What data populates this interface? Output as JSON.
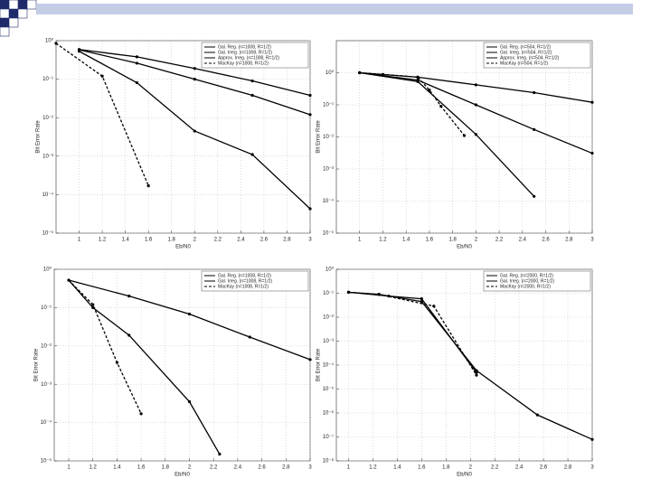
{
  "chart_data": [
    {
      "type": "line",
      "x_label": "Eb/N0",
      "y_label": "Bit Error Rate",
      "ylog": true,
      "grid": true,
      "legend": "upper right",
      "xlim": [
        0.8,
        3
      ],
      "xticks": [
        1,
        1.2,
        1.4,
        1.6,
        1.8,
        2,
        2.2,
        2.4,
        2.6,
        2.8,
        3
      ],
      "ylim": [
        1e-05,
        1
      ],
      "yticks": [
        {
          "value": 1,
          "label": "10⁰"
        },
        {
          "value": 0.1,
          "label": "10⁻¹"
        },
        {
          "value": 0.01,
          "label": "10⁻²"
        },
        {
          "value": 0.001,
          "label": "10⁻³"
        },
        {
          "value": 0.0001,
          "label": "10⁻⁴"
        },
        {
          "value": 1e-05,
          "label": "10⁻⁵"
        }
      ],
      "series": [
        {
          "name": "Gal. Reg. (n=1008, R=1/2)",
          "color": "#000000",
          "dash": false,
          "x": [
            1,
            1.5,
            2,
            2.5,
            3
          ],
          "values": [
            0.59,
            0.38,
            0.19,
            0.09,
            0.038
          ]
        },
        {
          "name": "Gal. Irreg. (n=1008, R=1/2)",
          "color": "#000000",
          "dash": false,
          "x": [
            1,
            1.5,
            2,
            2.5,
            3
          ],
          "values": [
            0.58,
            0.26,
            0.1,
            0.038,
            0.012
          ]
        },
        {
          "name": "Approx. Irreg. (n=1008, R=1/2)",
          "color": "#000000",
          "dash": false,
          "x": [
            1,
            1.5,
            2,
            2.5,
            3
          ],
          "values": [
            0.53,
            0.081,
            0.0045,
            0.0011,
            4.3e-05
          ]
        },
        {
          "name": "MacKay (n=1008, R=1/2)",
          "color": "#000000",
          "dash": true,
          "x": [
            0.8,
            1.2,
            1.6
          ],
          "values": [
            0.85,
            0.12,
            0.00017
          ]
        }
      ]
    },
    {
      "type": "line",
      "x_label": "Eb/N0",
      "y_label": "Bit Error Rate",
      "ylog": true,
      "grid": true,
      "legend": "upper right",
      "xlim": [
        0.8,
        3
      ],
      "xticks": [
        1,
        1.2,
        1.4,
        1.6,
        1.8,
        2,
        2.2,
        2.4,
        2.6,
        2.8,
        3
      ],
      "ylim": [
        1e-05,
        10
      ],
      "yticks": [
        {
          "value": 1,
          "label": "10⁰"
        },
        {
          "value": 0.1,
          "label": "10⁻¹"
        },
        {
          "value": 0.01,
          "label": "10⁻²"
        },
        {
          "value": 0.001,
          "label": "10⁻³"
        },
        {
          "value": 0.0001,
          "label": "10⁻⁴"
        },
        {
          "value": 1e-05,
          "label": "10⁻⁵"
        }
      ],
      "series": [
        {
          "name": "Gal. Reg. (n=504, R=1/2)",
          "color": "#000000",
          "dash": false,
          "x": [
            1,
            1.5,
            2,
            2.5,
            3
          ],
          "values": [
            1,
            0.73,
            0.42,
            0.24,
            0.12
          ]
        },
        {
          "name": "Gal. Irreg. (n=504, R=1/2)",
          "color": "#000000",
          "dash": false,
          "x": [
            1,
            1.5,
            2,
            2.5,
            3
          ],
          "values": [
            1,
            0.59,
            0.1,
            0.017,
            0.0031
          ]
        },
        {
          "name": "Approx. Irreg. (n=504, R=1/2)",
          "color": "#000000",
          "dash": false,
          "x": [
            1,
            1.5,
            2,
            2.5
          ],
          "values": [
            1,
            0.53,
            0.012,
            0.00014
          ]
        },
        {
          "name": "MacKay (n=504, R=1/2)",
          "color": "#000000",
          "dash": true,
          "x": [
            1,
            1.2,
            1.5,
            1.6,
            1.7,
            1.9
          ],
          "values": [
            1,
            0.89,
            0.73,
            0.29,
            0.09,
            0.011
          ]
        }
      ]
    },
    {
      "type": "line",
      "x_label": "Eb/N0",
      "y_label": "Bit Error Rate",
      "ylog": true,
      "grid": true,
      "legend": "upper right",
      "xlim": [
        0.88,
        3
      ],
      "xticks": [
        1,
        1.2,
        1.4,
        1.6,
        1.8,
        2,
        2.2,
        2.4,
        2.6,
        2.8,
        3
      ],
      "ylim": [
        1e-05,
        1
      ],
      "yticks": [
        {
          "value": 1,
          "label": "10⁰"
        },
        {
          "value": 0.1,
          "label": "10⁻¹"
        },
        {
          "value": 0.01,
          "label": "10⁻²"
        },
        {
          "value": 0.001,
          "label": "10⁻³"
        },
        {
          "value": 0.0001,
          "label": "10⁻⁴"
        },
        {
          "value": 1e-05,
          "label": "10⁻⁵"
        }
      ],
      "series": [
        {
          "name": "Gal. Reg. (n=1008, R=1/2)",
          "color": "#000000",
          "dash": false,
          "x": [
            1,
            1.5,
            2,
            2.5,
            3
          ],
          "values": [
            0.52,
            0.2,
            0.068,
            0.017,
            0.0044
          ]
        },
        {
          "name": "Gal. Irreg. (n=1008, R=1/2)",
          "color": "#000000",
          "dash": false,
          "x": [
            1,
            1.2,
            1.5,
            2,
            2.25
          ],
          "values": [
            0.52,
            0.1,
            0.019,
            0.00035,
            1.5e-05
          ]
        },
        {
          "name": "MacKay (n=1008, R=1/2)",
          "color": "#000000",
          "dash": true,
          "x": [
            1,
            1.2,
            1.4,
            1.6
          ],
          "values": [
            0.52,
            0.12,
            0.0037,
            0.00017
          ]
        }
      ]
    },
    {
      "type": "line",
      "x_label": "Eb/N0",
      "y_label": "Bit Error Rate",
      "ylog": true,
      "grid": true,
      "legend": "upper right",
      "xlim": [
        0.9,
        3
      ],
      "xticks": [
        1,
        1.2,
        1.4,
        1.6,
        1.8,
        2,
        2.2,
        2.4,
        2.6,
        2.8,
        3
      ],
      "ylim": [
        1e-08,
        1
      ],
      "yticks": [
        {
          "value": 1,
          "label": "10⁰"
        },
        {
          "value": 0.1,
          "label": "10⁻¹"
        },
        {
          "value": 0.01,
          "label": "10⁻²"
        },
        {
          "value": 0.001,
          "label": "10⁻³"
        },
        {
          "value": 0.0001,
          "label": "10⁻⁴"
        },
        {
          "value": 1e-05,
          "label": "10⁻⁵"
        },
        {
          "value": 1e-06,
          "label": "10⁻⁶"
        },
        {
          "value": 1e-07,
          "label": "10⁻⁷"
        },
        {
          "value": 1e-08,
          "label": "10⁻⁸"
        }
      ],
      "series": [
        {
          "name": "Gal. Reg. (n=2000, R=1/2)",
          "color": "#000000",
          "dash": false,
          "x": [
            1,
            1.25,
            1.6,
            2.05,
            2.55,
            3
          ],
          "values": [
            0.11,
            0.09,
            0.045,
            5.9e-05,
            8.3e-07,
            7.9e-08
          ]
        },
        {
          "name": "Gal. Irreg. (n=2000, R=1/2)",
          "color": "#000000",
          "dash": false,
          "x": [
            1,
            1.33,
            1.6,
            2.05
          ],
          "values": [
            0.11,
            0.076,
            0.059,
            4.9e-05
          ]
        },
        {
          "name": "MacKay (n=2000, R=1/2)",
          "color": "#000000",
          "dash": true,
          "x": [
            1,
            1.25,
            1.7,
            2.05
          ],
          "values": [
            0.11,
            0.09,
            0.029,
            3.8e-05
          ]
        }
      ]
    }
  ]
}
